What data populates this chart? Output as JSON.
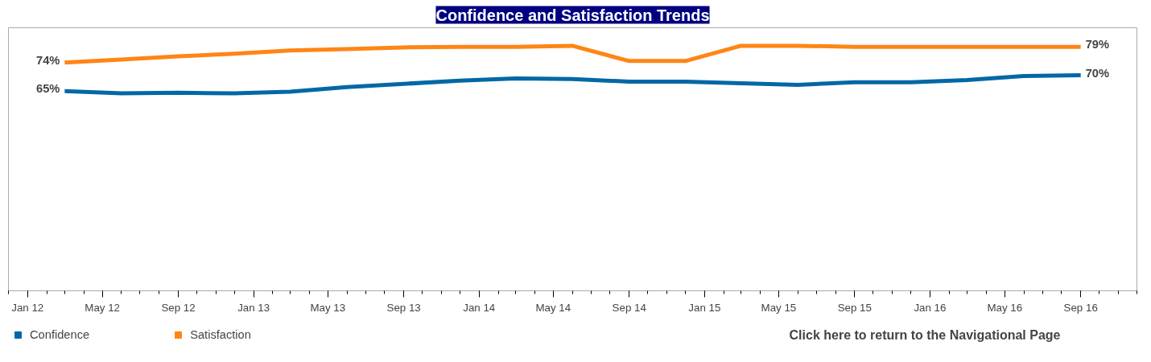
{
  "chart_data": {
    "type": "line",
    "title": "Confidence and Satisfaction Trends",
    "x": [
      "2012-03",
      "2012-06",
      "2012-09",
      "2012-12",
      "2013-03",
      "2013-06",
      "2013-09",
      "2013-12",
      "2014-03",
      "2014-06",
      "2014-09",
      "2014-12",
      "2015-03",
      "2015-06",
      "2015-09",
      "2015-12",
      "2016-03",
      "2016-06",
      "2016-09"
    ],
    "series": [
      {
        "name": "Confidence",
        "color": "#0068a5",
        "values": [
          65,
          64.3,
          64.5,
          64.3,
          64.8,
          66.3,
          67.3,
          68.3,
          69,
          68.8,
          68,
          68,
          67.5,
          67,
          67.8,
          67.8,
          68.5,
          69.8,
          70
        ],
        "value_labels": [
          "65%",
          null,
          null,
          null,
          null,
          null,
          null,
          null,
          null,
          null,
          null,
          null,
          null,
          null,
          null,
          null,
          null,
          null,
          "70%"
        ]
      },
      {
        "name": "Satisfaction",
        "color": "#ff8515",
        "values": [
          74,
          75,
          76,
          76.8,
          77.8,
          78.3,
          78.8,
          79,
          79,
          79.3,
          74.5,
          74.5,
          79.3,
          79.3,
          79,
          79,
          79,
          79,
          79
        ],
        "value_labels": [
          "74%",
          null,
          null,
          null,
          null,
          null,
          null,
          null,
          null,
          null,
          null,
          null,
          null,
          null,
          null,
          null,
          null,
          null,
          "79%"
        ]
      }
    ],
    "ylim": [
      2,
      85
    ],
    "tick_labels": "x",
    "xlim": [
      "2011-12",
      "2016-12"
    ],
    "xticks": [
      {
        "value": "2012-01",
        "label": "Jan 12"
      },
      {
        "value": "2012-05",
        "label": "May 12"
      },
      {
        "value": "2012-09",
        "label": "Sep 12"
      },
      {
        "value": "2013-01",
        "label": "Jan 13"
      },
      {
        "value": "2013-05",
        "label": "May 13"
      },
      {
        "value": "2013-09",
        "label": "Sep 13"
      },
      {
        "value": "2014-01",
        "label": "Jan 14"
      },
      {
        "value": "2014-05",
        "label": "May 14"
      },
      {
        "value": "2014-09",
        "label": "Sep 14"
      },
      {
        "value": "2015-01",
        "label": "Jan 15"
      },
      {
        "value": "2015-05",
        "label": "May 15"
      },
      {
        "value": "2015-09",
        "label": "Sep 15"
      },
      {
        "value": "2016-01",
        "label": "Jan 16"
      },
      {
        "value": "2016-05",
        "label": "May 16"
      },
      {
        "value": "2016-09",
        "label": "Sep 16"
      }
    ],
    "legend": "bottom left",
    "line_style": "solid",
    "annotations": [
      "Click here to return to the Navigational Page"
    ]
  }
}
